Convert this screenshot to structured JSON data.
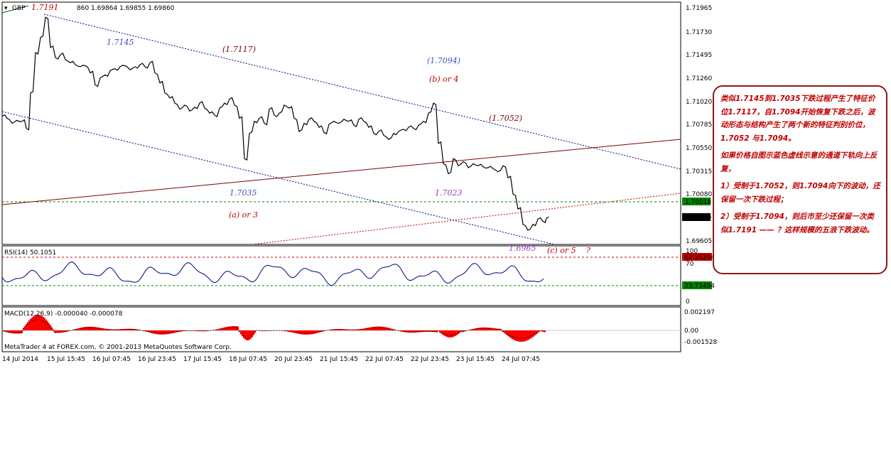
{
  "header": {
    "symbol": "GBP",
    "ohlc": "860 1.69864 1.69855 1.69860",
    "peak_label": "1.7191"
  },
  "price_axis": [
    "1.71965",
    "1.71730",
    "1.71495",
    "1.71260",
    "1.71020",
    "1.70785",
    "1.70550",
    "1.70315",
    "1.70080",
    "1.69605"
  ],
  "price_tags": {
    "green": "1.70018",
    "current": "1.69860"
  },
  "annotations": {
    "a1": "1.7145",
    "a2": "(1.7117)",
    "a3": "(1.7094)",
    "a4": "(b) or 4",
    "a5": "(1.7052)",
    "a6": "1.7035",
    "a7": "(a) or 3",
    "a8": "1.7023",
    "a9": "1.6965",
    "a10": "(c) or 5",
    "a11": "?"
  },
  "rsi": {
    "title": "RSI(14) 50.1051",
    "axis": [
      "100",
      "70",
      "30",
      "0"
    ],
    "tag_high": "82.35294",
    "tag_low": "33.73494"
  },
  "macd": {
    "title": "MACD(12,26,9) -0.000040 -0.000078",
    "axis": [
      "0.002197",
      "0.00",
      "-0.001528"
    ]
  },
  "footer": "MetaTrader 4 at FOREX.com, © 2001-2013 MetaQuotes Software Corp.",
  "time_axis": [
    "14 Jul 2014",
    "15 Jul 15:45",
    "16 Jul 07:45",
    "16 Jul 23:45",
    "17 Jul 15:45",
    "18 Jul 07:45",
    "20 Jul 23:45",
    "21 Jul 15:45",
    "22 Jul 07:45",
    "22 Jul 23:45",
    "23 Jul 15:45",
    "24 Jul 07:45"
  ],
  "note": {
    "p1": "类似1.7145到1.7035下跌过程产生了特征价位1.7117，自1.7094开始恢复下跌之后，波动形态与结构产生了两个新的特征判别价位，1.7052 与1.7094。",
    "p2": "如果价格自图示蓝色虚线示意的通道下轨向上反复，",
    "p3": "1）受制于1.7052，则1.7094向下的波动，还保留一次下跌过程；",
    "p4": "2）受制于1.7094，则后市至少还保留一次类似1.7191 —— ？这样规模的五浪下跌波动。"
  },
  "colors": {
    "channel": "#00008b",
    "trend": "#800000",
    "macd_bar": "#ff0000",
    "rsi_line": "#000080",
    "note_border": "#8b1a1a"
  },
  "chart_data": {
    "type": "line",
    "ylim": [
      1.696,
      1.72
    ],
    "x": [
      0,
      7,
      14,
      21,
      28,
      34,
      40,
      47,
      54,
      61,
      68,
      75,
      82,
      89,
      96,
      103,
      110,
      117,
      124,
      131,
      138,
      145,
      152,
      159,
      166,
      173,
      180,
      187,
      194,
      201,
      208,
      215,
      222,
      229,
      236,
      243,
      250,
      257,
      264,
      271,
      278,
      285,
      292,
      299,
      306,
      313,
      320,
      327,
      334,
      341,
      348,
      355,
      362,
      369,
      376,
      383,
      390,
      397,
      404,
      411,
      418,
      425,
      432,
      439,
      446,
      453,
      460,
      467,
      474,
      481,
      488,
      495,
      502,
      509,
      516,
      523,
      530,
      537,
      544,
      551,
      558,
      565,
      572,
      579,
      586,
      593,
      600,
      607,
      614,
      621,
      628,
      635,
      642,
      649,
      656,
      663,
      670,
      677,
      684,
      691,
      698,
      705,
      712,
      719,
      726,
      733,
      740,
      747,
      754,
      761,
      766
    ],
    "values": [
      1.7087,
      1.7085,
      1.708,
      1.7083,
      1.7082,
      1.7075,
      1.711,
      1.715,
      1.7165,
      1.7185,
      1.7155,
      1.7145,
      1.7148,
      1.7143,
      1.714,
      1.7138,
      1.7136,
      1.7137,
      1.713,
      1.7118,
      1.7125,
      1.7128,
      1.7132,
      1.7134,
      1.7136,
      1.7137,
      1.7133,
      1.7136,
      1.7138,
      1.7136,
      1.714,
      1.713,
      1.712,
      1.711,
      1.7105,
      1.71,
      1.7094,
      1.7098,
      1.7092,
      1.7096,
      1.71,
      1.7095,
      1.709,
      1.7088,
      1.7095,
      1.71,
      1.7104,
      1.7098,
      1.7085,
      1.7045,
      1.707,
      1.7082,
      1.7085,
      1.708,
      1.7094,
      1.7088,
      1.709,
      1.7098,
      1.7095,
      1.7085,
      1.7072,
      1.708,
      1.7084,
      1.7082,
      1.7076,
      1.7071,
      1.7079,
      1.7082,
      1.708,
      1.7084,
      1.7082,
      1.7078,
      1.7084,
      1.7082,
      1.7076,
      1.707,
      1.7072,
      1.7068,
      1.7064,
      1.707,
      1.7072,
      1.7074,
      1.7076,
      1.7075,
      1.7078,
      1.7082,
      1.709,
      1.71,
      1.706,
      1.704,
      1.703,
      1.7045,
      1.7038,
      1.7042,
      1.7036,
      1.704,
      1.7038,
      1.7037,
      1.7036,
      1.7035,
      1.7032,
      1.7038,
      1.7026,
      1.701,
      1.6995,
      1.698,
      1.6974,
      1.698,
      1.6985,
      1.6983,
      1.6986
    ]
  }
}
